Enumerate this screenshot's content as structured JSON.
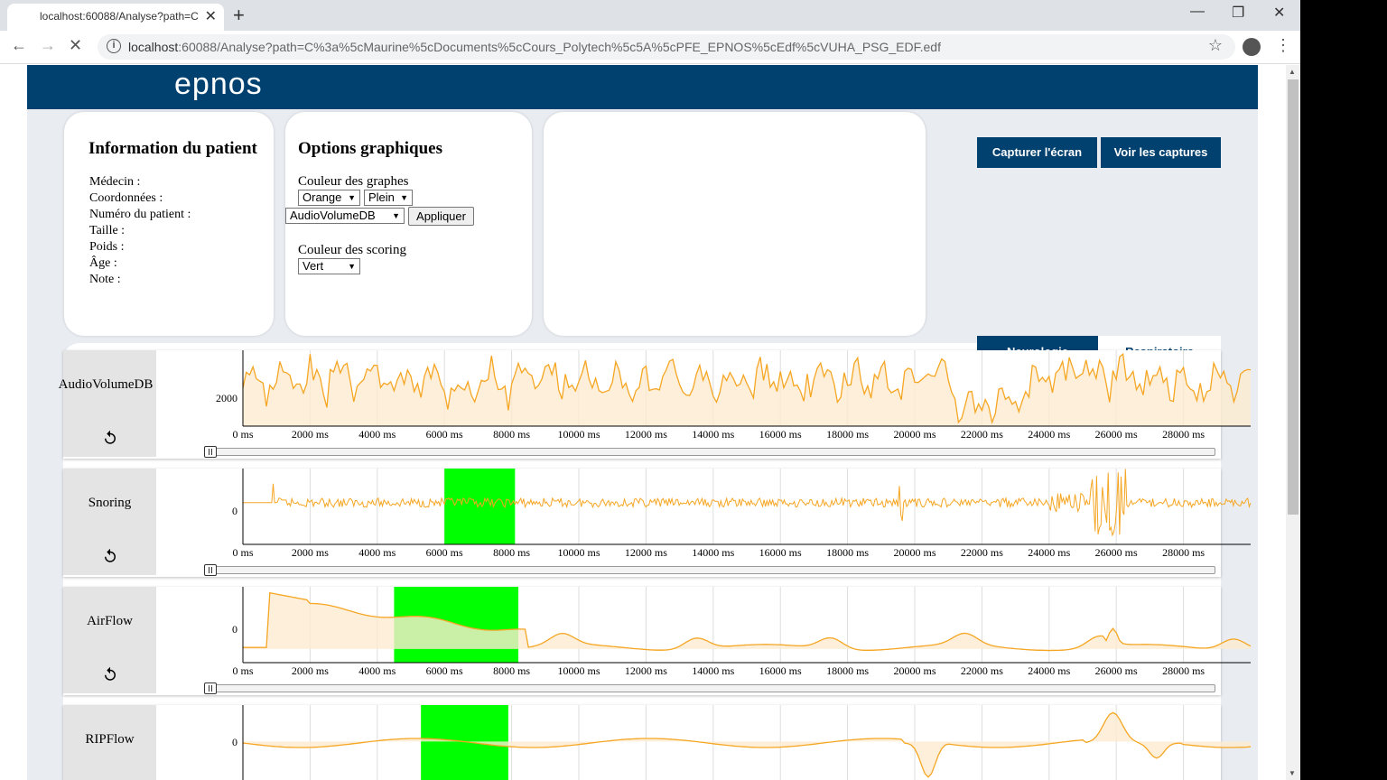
{
  "browser": {
    "tab_title": "localhost:60088/Analyse?path=C",
    "url_host": "localhost",
    "url_rest": ":60088/Analyse?path=C%3a%5cMaurine%5cDocuments%5cCours_Polytech%5c5A%5cPFE_EPNOS%5cEdf%5cVUHA_PSG_EDF.edf"
  },
  "header": {
    "logo": "epnos"
  },
  "patient": {
    "title": "Information du patient",
    "fields": [
      "Médecin :",
      "Coordonnées :",
      "Numéro du patient :",
      "Taille :",
      "Poids :",
      "Âge :",
      "Note :"
    ]
  },
  "options": {
    "title": "Options graphiques",
    "graph_color_label": "Couleur des graphes",
    "graph_color": "Orange",
    "fill_mode": "Plein",
    "signal": "AudioVolumeDB",
    "apply_label": "Appliquer",
    "scoring_color_label": "Couleur des scoring",
    "scoring_color": "Vert"
  },
  "actions": {
    "capture": "Capturer l'écran",
    "view_captures": "Voir les captures"
  },
  "tabs": {
    "neuro": "Neurologie",
    "resp": "Respiratoire"
  },
  "colors": {
    "navy": "#004170",
    "graph": "#f5a623",
    "fill": "#fdebd0",
    "scoring": "#00ff00"
  },
  "x_ticks": [
    "0 ms",
    "2000 ms",
    "4000 ms",
    "6000 ms",
    "8000 ms",
    "10000 ms",
    "12000 ms",
    "14000 ms",
    "16000 ms",
    "18000 ms",
    "20000 ms",
    "22000 ms",
    "24000 ms",
    "26000 ms",
    "28000 ms"
  ],
  "graphs": [
    {
      "name": "AudioVolumeDB",
      "ytick": "2000",
      "scoring": []
    },
    {
      "name": "Snoring",
      "ytick": "0",
      "scoring": [
        [
          6000,
          8100
        ]
      ]
    },
    {
      "name": "AirFlow",
      "ytick": "0",
      "scoring": [
        [
          4500,
          8200
        ]
      ]
    },
    {
      "name": "RIPFlow",
      "ytick": "0",
      "scoring": [
        [
          5300,
          7900
        ]
      ]
    }
  ]
}
